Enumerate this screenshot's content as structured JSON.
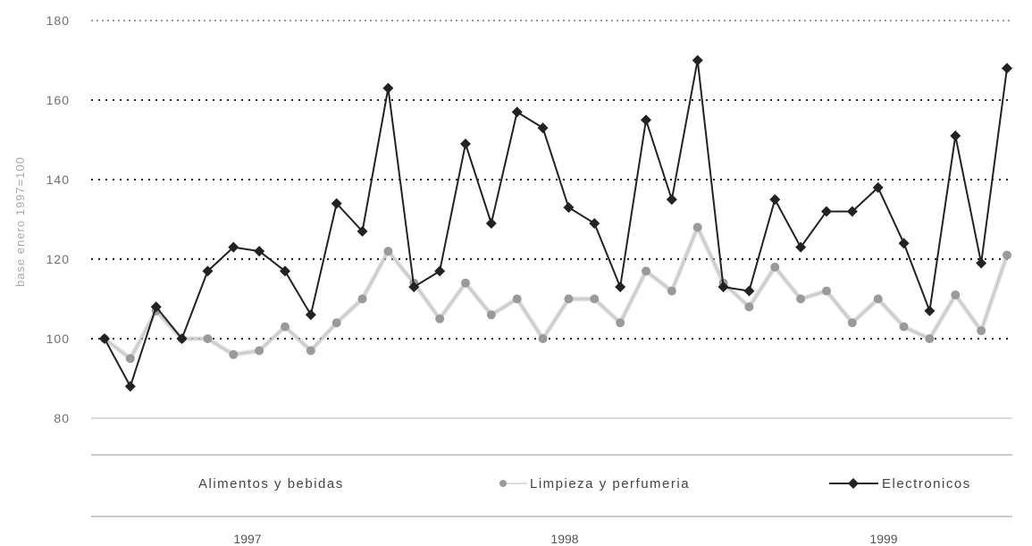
{
  "chart_data": {
    "type": "line",
    "ylabel": "base enero 1997=100",
    "ylim": [
      80,
      180
    ],
    "yticks": [
      80,
      100,
      120,
      140,
      160,
      180
    ],
    "year_labels": [
      "1997",
      "1998",
      "1999"
    ],
    "grid": "horizontal dotted",
    "legend": "bottom",
    "series": [
      {
        "name": "Alimentos y bebidas",
        "color": "#bdbdbd",
        "marker": "none",
        "values": [
          100,
          95,
          107,
          100,
          100,
          96,
          97,
          103,
          97,
          104,
          110,
          122,
          114,
          105,
          114,
          106,
          110,
          100,
          110,
          110,
          104,
          117,
          112,
          128,
          114,
          108,
          118,
          110,
          112,
          104,
          110,
          103,
          100,
          111,
          102,
          121
        ]
      },
      {
        "name": "Limpieza y perfumeria",
        "color": "#9a9a9a",
        "marker": "circle",
        "values": [
          100,
          95,
          107,
          100,
          100,
          96,
          97,
          103,
          97,
          104,
          110,
          122,
          114,
          105,
          114,
          106,
          110,
          100,
          110,
          110,
          104,
          117,
          112,
          128,
          114,
          108,
          118,
          110,
          112,
          104,
          110,
          103,
          100,
          111,
          102,
          121
        ]
      },
      {
        "name": "Electronicos",
        "color": "#222222",
        "marker": "diamond",
        "values": [
          100,
          88,
          108,
          100,
          117,
          123,
          122,
          117,
          106,
          134,
          127,
          163,
          113,
          117,
          149,
          129,
          157,
          153,
          133,
          129,
          113,
          155,
          135,
          170,
          113,
          112,
          135,
          123,
          132,
          132,
          138,
          124,
          107,
          151,
          119,
          168
        ]
      }
    ]
  }
}
